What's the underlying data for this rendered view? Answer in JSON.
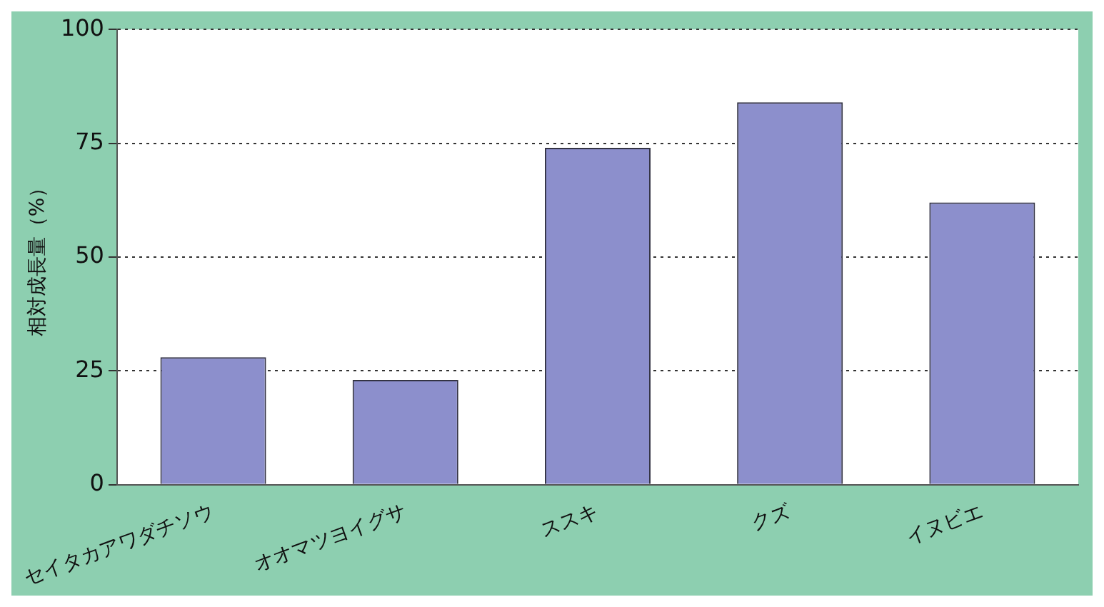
{
  "chart_data": {
    "type": "bar",
    "ylabel": "相対成長量（%）",
    "categories": [
      "セイタカアワダチソウ",
      "オオマツヨイグサ",
      "ススキ",
      "クズ",
      "イヌビエ"
    ],
    "values": [
      28,
      23,
      74,
      84,
      62
    ],
    "color": "#8c8fcc",
    "ylim": [
      0,
      100
    ],
    "yticks": [
      0,
      25,
      50,
      75,
      100
    ],
    "grid": "y",
    "line_style": "dotted"
  }
}
